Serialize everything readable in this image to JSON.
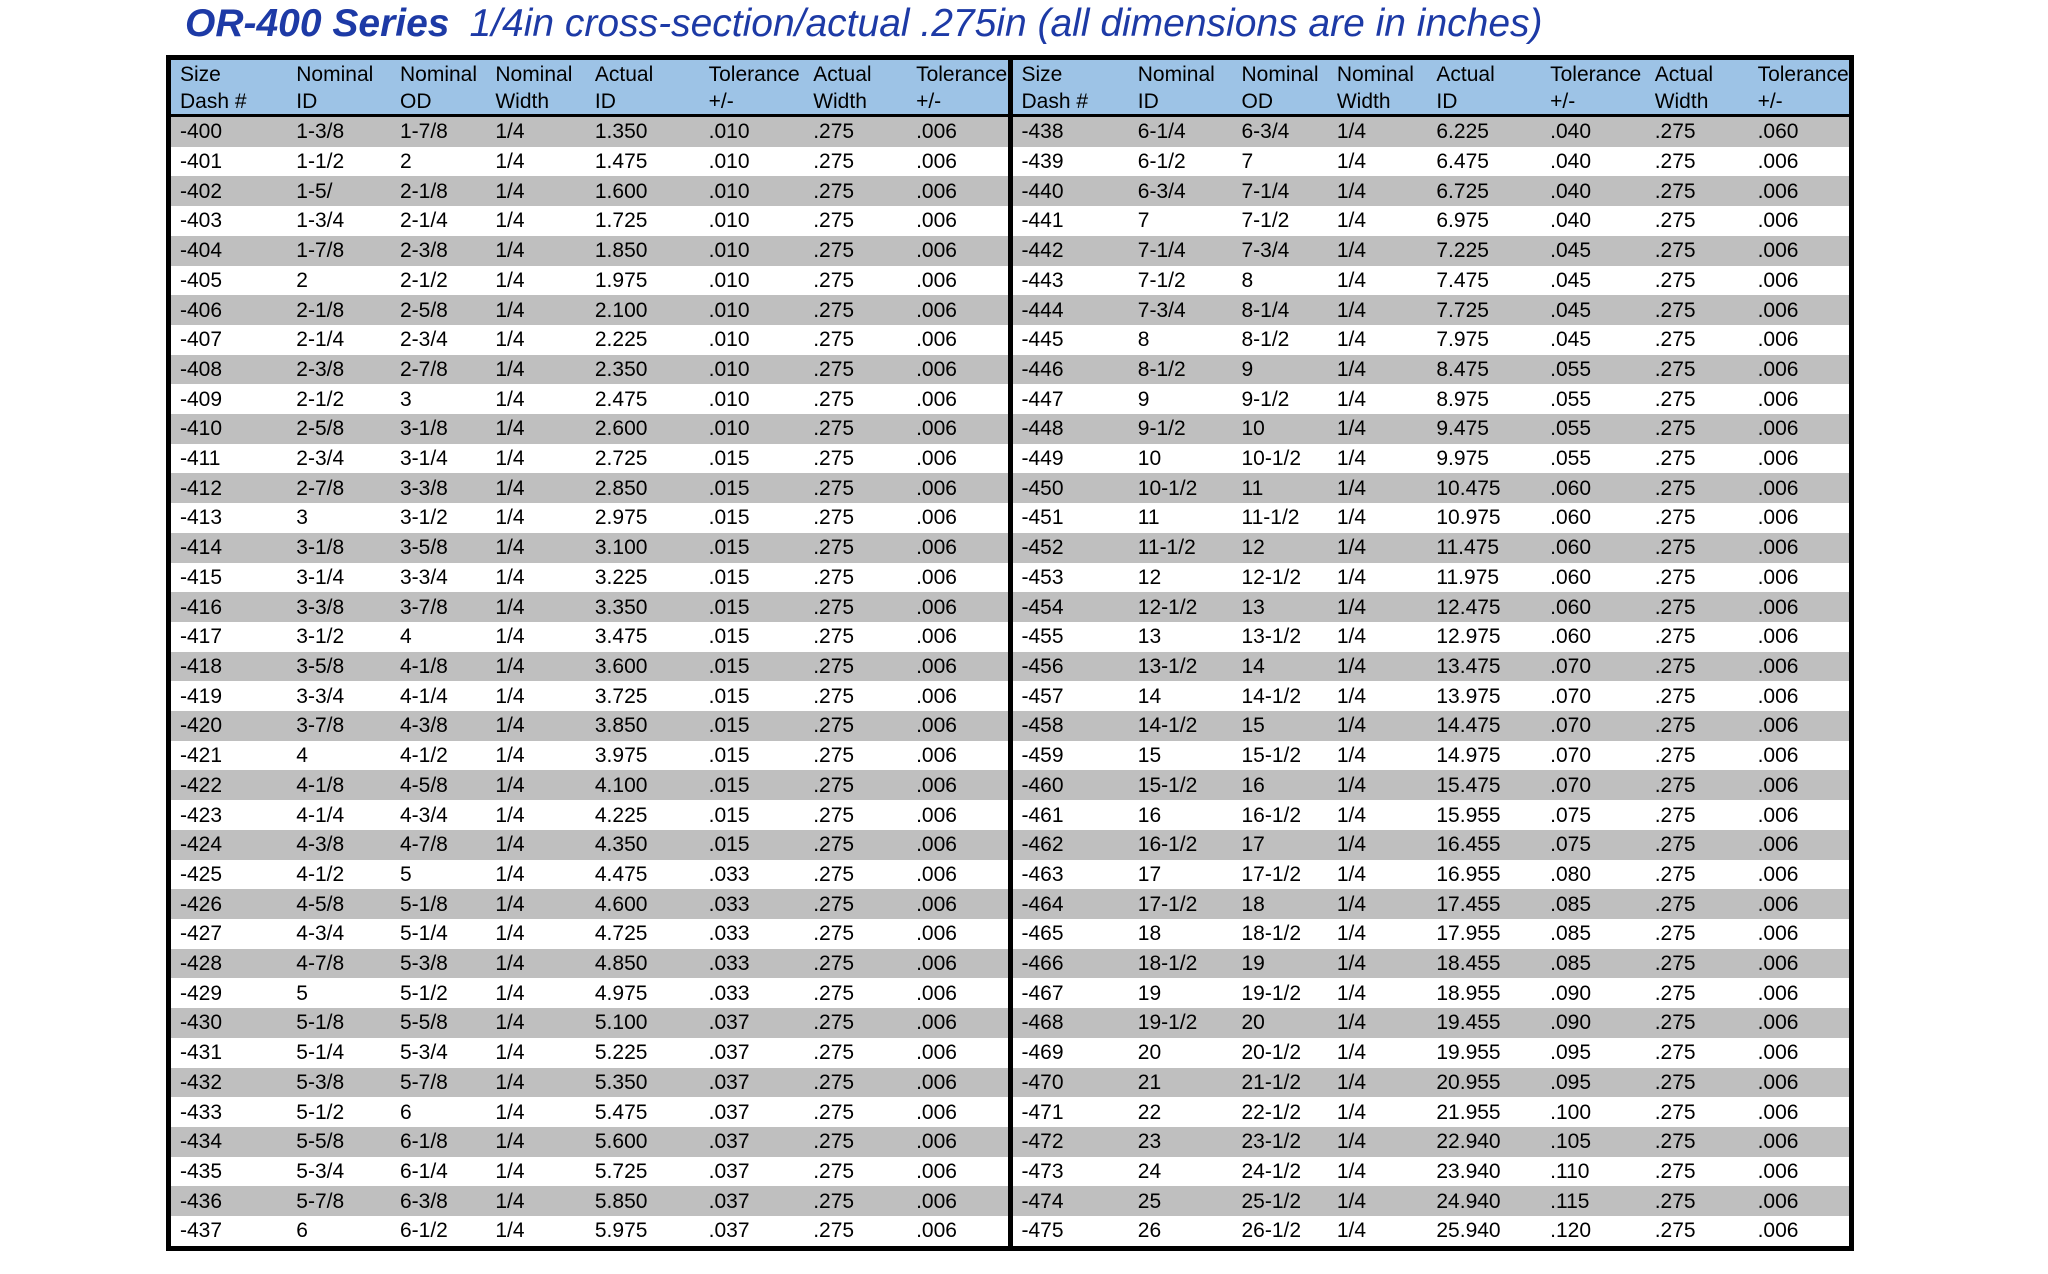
{
  "title": {
    "series": "OR-400 Series",
    "subtitle": "1/4in cross-section/actual .275in (all dimensions are in inches)"
  },
  "colors": {
    "title_blue": "#1d3aa6",
    "header_bg": "#9dc3e6",
    "stripe_gray": "#bfbfbf",
    "stripe_white": "#ffffff",
    "border": "#000000"
  },
  "column_headers": [
    [
      "Size",
      "Dash #"
    ],
    [
      "Nominal",
      "ID"
    ],
    [
      "Nominal",
      "OD"
    ],
    [
      "Nominal",
      "Width"
    ],
    [
      "Actual",
      "ID"
    ],
    [
      "Tolerance",
      "+/-"
    ],
    [
      "Actual",
      "Width"
    ],
    [
      "Tolerance",
      "+/-"
    ]
  ],
  "left_table": {
    "rows": [
      [
        "-400",
        "1-3/8",
        "1-7/8",
        "1/4",
        "1.350",
        ".010",
        ".275",
        ".006"
      ],
      [
        "-401",
        "1-1/2",
        "2",
        "1/4",
        "1.475",
        ".010",
        ".275",
        ".006"
      ],
      [
        "-402",
        "1-5/",
        "2-1/8",
        "1/4",
        "1.600",
        ".010",
        ".275",
        ".006"
      ],
      [
        "-403",
        "1-3/4",
        "2-1/4",
        "1/4",
        "1.725",
        ".010",
        ".275",
        ".006"
      ],
      [
        "-404",
        "1-7/8",
        "2-3/8",
        "1/4",
        "1.850",
        ".010",
        ".275",
        ".006"
      ],
      [
        "-405",
        "2",
        "2-1/2",
        "1/4",
        "1.975",
        ".010",
        ".275",
        ".006"
      ],
      [
        "-406",
        "2-1/8",
        "2-5/8",
        "1/4",
        "2.100",
        ".010",
        ".275",
        ".006"
      ],
      [
        "-407",
        "2-1/4",
        "2-3/4",
        "1/4",
        "2.225",
        ".010",
        ".275",
        ".006"
      ],
      [
        "-408",
        "2-3/8",
        "2-7/8",
        "1/4",
        "2.350",
        ".010",
        ".275",
        ".006"
      ],
      [
        "-409",
        "2-1/2",
        "3",
        "1/4",
        "2.475",
        ".010",
        ".275",
        ".006"
      ],
      [
        "-410",
        "2-5/8",
        "3-1/8",
        "1/4",
        "2.600",
        ".010",
        ".275",
        ".006"
      ],
      [
        "-411",
        "2-3/4",
        "3-1/4",
        "1/4",
        "2.725",
        ".015",
        ".275",
        ".006"
      ],
      [
        "-412",
        "2-7/8",
        "3-3/8",
        "1/4",
        "2.850",
        ".015",
        ".275",
        ".006"
      ],
      [
        "-413",
        "3",
        "3-1/2",
        "1/4",
        "2.975",
        ".015",
        ".275",
        ".006"
      ],
      [
        "-414",
        "3-1/8",
        "3-5/8",
        "1/4",
        "3.100",
        ".015",
        ".275",
        ".006"
      ],
      [
        "-415",
        "3-1/4",
        "3-3/4",
        "1/4",
        "3.225",
        ".015",
        ".275",
        ".006"
      ],
      [
        "-416",
        "3-3/8",
        "3-7/8",
        "1/4",
        "3.350",
        ".015",
        ".275",
        ".006"
      ],
      [
        "-417",
        "3-1/2",
        "4",
        "1/4",
        "3.475",
        ".015",
        ".275",
        ".006"
      ],
      [
        "-418",
        "3-5/8",
        "4-1/8",
        "1/4",
        "3.600",
        ".015",
        ".275",
        ".006"
      ],
      [
        "-419",
        "3-3/4",
        "4-1/4",
        "1/4",
        "3.725",
        ".015",
        ".275",
        ".006"
      ],
      [
        "-420",
        "3-7/8",
        "4-3/8",
        "1/4",
        "3.850",
        ".015",
        ".275",
        ".006"
      ],
      [
        "-421",
        "4",
        "4-1/2",
        "1/4",
        "3.975",
        ".015",
        ".275",
        ".006"
      ],
      [
        "-422",
        "4-1/8",
        "4-5/8",
        "1/4",
        "4.100",
        ".015",
        ".275",
        ".006"
      ],
      [
        "-423",
        "4-1/4",
        "4-3/4",
        "1/4",
        "4.225",
        ".015",
        ".275",
        ".006"
      ],
      [
        "-424",
        "4-3/8",
        "4-7/8",
        "1/4",
        "4.350",
        ".015",
        ".275",
        ".006"
      ],
      [
        "-425",
        "4-1/2",
        "5",
        "1/4",
        "4.475",
        ".033",
        ".275",
        ".006"
      ],
      [
        "-426",
        "4-5/8",
        "5-1/8",
        "1/4",
        "4.600",
        ".033",
        ".275",
        ".006"
      ],
      [
        "-427",
        "4-3/4",
        "5-1/4",
        "1/4",
        "4.725",
        ".033",
        ".275",
        ".006"
      ],
      [
        "-428",
        "4-7/8",
        "5-3/8",
        "1/4",
        "4.850",
        ".033",
        ".275",
        ".006"
      ],
      [
        "-429",
        "5",
        "5-1/2",
        "1/4",
        "4.975",
        ".033",
        ".275",
        ".006"
      ],
      [
        "-430",
        "5-1/8",
        "5-5/8",
        "1/4",
        "5.100",
        ".037",
        ".275",
        ".006"
      ],
      [
        "-431",
        "5-1/4",
        "5-3/4",
        "1/4",
        "5.225",
        ".037",
        ".275",
        ".006"
      ],
      [
        "-432",
        "5-3/8",
        "5-7/8",
        "1/4",
        "5.350",
        ".037",
        ".275",
        ".006"
      ],
      [
        "-433",
        "5-1/2",
        "6",
        "1/4",
        "5.475",
        ".037",
        ".275",
        ".006"
      ],
      [
        "-434",
        "5-5/8",
        "6-1/8",
        "1/4",
        "5.600",
        ".037",
        ".275",
        ".006"
      ],
      [
        "-435",
        "5-3/4",
        "6-1/4",
        "1/4",
        "5.725",
        ".037",
        ".275",
        ".006"
      ],
      [
        "-436",
        "5-7/8",
        "6-3/8",
        "1/4",
        "5.850",
        ".037",
        ".275",
        ".006"
      ],
      [
        "-437",
        "6",
        "6-1/2",
        "1/4",
        "5.975",
        ".037",
        ".275",
        ".006"
      ]
    ]
  },
  "right_table": {
    "rows": [
      [
        "-438",
        "6-1/4",
        "6-3/4",
        "1/4",
        "6.225",
        ".040",
        ".275",
        ".060"
      ],
      [
        "-439",
        "6-1/2",
        "7",
        "1/4",
        "6.475",
        ".040",
        ".275",
        ".006"
      ],
      [
        "-440",
        "6-3/4",
        "7-1/4",
        "1/4",
        "6.725",
        ".040",
        ".275",
        ".006"
      ],
      [
        "-441",
        "7",
        "7-1/2",
        "1/4",
        "6.975",
        ".040",
        ".275",
        ".006"
      ],
      [
        "-442",
        "7-1/4",
        "7-3/4",
        "1/4",
        "7.225",
        ".045",
        ".275",
        ".006"
      ],
      [
        "-443",
        "7-1/2",
        "8",
        "1/4",
        "7.475",
        ".045",
        ".275",
        ".006"
      ],
      [
        "-444",
        "7-3/4",
        "8-1/4",
        "1/4",
        "7.725",
        ".045",
        ".275",
        ".006"
      ],
      [
        "-445",
        "8",
        "8-1/2",
        "1/4",
        "7.975",
        ".045",
        ".275",
        ".006"
      ],
      [
        "-446",
        "8-1/2",
        "9",
        "1/4",
        "8.475",
        ".055",
        ".275",
        ".006"
      ],
      [
        "-447",
        "9",
        "9-1/2",
        "1/4",
        "8.975",
        ".055",
        ".275",
        ".006"
      ],
      [
        "-448",
        "9-1/2",
        "10",
        "1/4",
        "9.475",
        ".055",
        ".275",
        ".006"
      ],
      [
        "-449",
        "10",
        "10-1/2",
        "1/4",
        "9.975",
        ".055",
        ".275",
        ".006"
      ],
      [
        "-450",
        "10-1/2",
        "11",
        "1/4",
        "10.475",
        ".060",
        ".275",
        ".006"
      ],
      [
        "-451",
        "11",
        "11-1/2",
        "1/4",
        "10.975",
        ".060",
        ".275",
        ".006"
      ],
      [
        "-452",
        "11-1/2",
        "12",
        "1/4",
        "11.475",
        ".060",
        ".275",
        ".006"
      ],
      [
        "-453",
        "12",
        "12-1/2",
        "1/4",
        "11.975",
        ".060",
        ".275",
        ".006"
      ],
      [
        "-454",
        "12-1/2",
        "13",
        "1/4",
        "12.475",
        ".060",
        ".275",
        ".006"
      ],
      [
        "-455",
        "13",
        "13-1/2",
        "1/4",
        "12.975",
        ".060",
        ".275",
        ".006"
      ],
      [
        "-456",
        "13-1/2",
        "14",
        "1/4",
        "13.475",
        ".070",
        ".275",
        ".006"
      ],
      [
        "-457",
        "14",
        "14-1/2",
        "1/4",
        "13.975",
        ".070",
        ".275",
        ".006"
      ],
      [
        "-458",
        "14-1/2",
        "15",
        "1/4",
        "14.475",
        ".070",
        ".275",
        ".006"
      ],
      [
        "-459",
        "15",
        "15-1/2",
        "1/4",
        "14.975",
        ".070",
        ".275",
        ".006"
      ],
      [
        "-460",
        "15-1/2",
        "16",
        "1/4",
        "15.475",
        ".070",
        ".275",
        ".006"
      ],
      [
        "-461",
        "16",
        "16-1/2",
        "1/4",
        "15.955",
        ".075",
        ".275",
        ".006"
      ],
      [
        "-462",
        "16-1/2",
        "17",
        "1/4",
        "16.455",
        ".075",
        ".275",
        ".006"
      ],
      [
        "-463",
        "17",
        "17-1/2",
        "1/4",
        "16.955",
        ".080",
        ".275",
        ".006"
      ],
      [
        "-464",
        "17-1/2",
        "18",
        "1/4",
        "17.455",
        ".085",
        ".275",
        ".006"
      ],
      [
        "-465",
        "18",
        "18-1/2",
        "1/4",
        "17.955",
        ".085",
        ".275",
        ".006"
      ],
      [
        "-466",
        "18-1/2",
        "19",
        "1/4",
        "18.455",
        ".085",
        ".275",
        ".006"
      ],
      [
        "-467",
        "19",
        "19-1/2",
        "1/4",
        "18.955",
        ".090",
        ".275",
        ".006"
      ],
      [
        "-468",
        "19-1/2",
        "20",
        "1/4",
        "19.455",
        ".090",
        ".275",
        ".006"
      ],
      [
        "-469",
        "20",
        "20-1/2",
        "1/4",
        "19.955",
        ".095",
        ".275",
        ".006"
      ],
      [
        "-470",
        "21",
        "21-1/2",
        "1/4",
        "20.955",
        ".095",
        ".275",
        ".006"
      ],
      [
        "-471",
        "22",
        "22-1/2",
        "1/4",
        "21.955",
        ".100",
        ".275",
        ".006"
      ],
      [
        "-472",
        "23",
        "23-1/2",
        "1/4",
        "22.940",
        ".105",
        ".275",
        ".006"
      ],
      [
        "-473",
        "24",
        "24-1/2",
        "1/4",
        "23.940",
        ".110",
        ".275",
        ".006"
      ],
      [
        "-474",
        "25",
        "25-1/2",
        "1/4",
        "24.940",
        ".115",
        ".275",
        ".006"
      ],
      [
        "-475",
        "26",
        "26-1/2",
        "1/4",
        "25.940",
        ".120",
        ".275",
        ".006"
      ]
    ]
  }
}
